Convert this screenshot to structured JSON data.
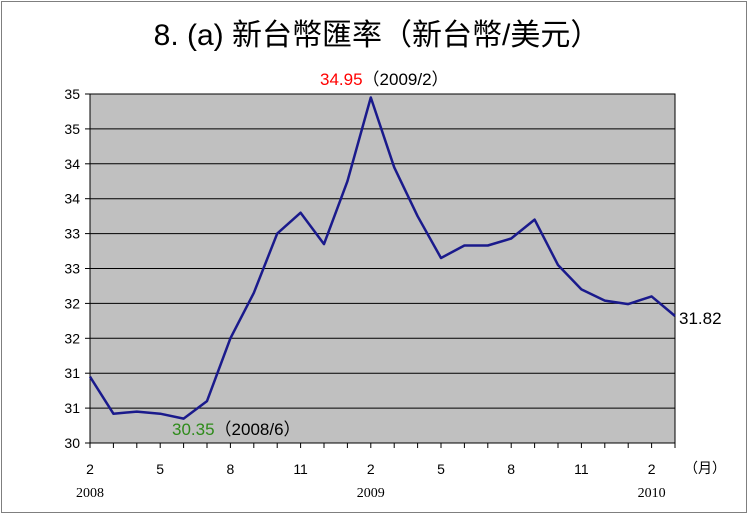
{
  "chart_data": {
    "type": "line",
    "title": "8. (a)  新台幣匯率（新台幣/美元）",
    "xlabel": "",
    "ylabel": "",
    "x_unit": "（月）",
    "x_month_ticks": [
      "2",
      "5",
      "8",
      "11",
      "2",
      "5",
      "8",
      "11",
      "2"
    ],
    "x_year_labels": [
      "2008",
      "2009",
      "2010"
    ],
    "y_tick_labels": [
      "30",
      "31",
      "31",
      "32",
      "32",
      "33",
      "33",
      "34",
      "34",
      "35",
      "35"
    ],
    "ylim": [
      30,
      35
    ],
    "grid": true,
    "background_color": "#c0c0c0",
    "line_color": "#1a1a8c",
    "series": [
      {
        "x": [
          "2008/2",
          "2008/3",
          "2008/4",
          "2008/5",
          "2008/6",
          "2008/7",
          "2008/8",
          "2008/9",
          "2008/10",
          "2008/11",
          "2008/12",
          "2009/1",
          "2009/2",
          "2009/3",
          "2009/4",
          "2009/5",
          "2009/6",
          "2009/7",
          "2009/8",
          "2009/9",
          "2009/10",
          "2009/11",
          "2009/12",
          "2010/1",
          "2010/2",
          "2010/3"
        ],
        "values": [
          30.95,
          30.42,
          30.45,
          30.42,
          30.35,
          30.6,
          31.5,
          32.15,
          33.0,
          33.3,
          32.85,
          33.75,
          34.95,
          33.95,
          33.25,
          32.65,
          32.83,
          32.83,
          32.93,
          33.2,
          32.55,
          32.2,
          32.04,
          31.99,
          32.1,
          31.82
        ]
      }
    ],
    "annotations": [
      {
        "value": "34.95",
        "value_color": "#ff0000",
        "date": "（2009/2）"
      },
      {
        "value": "30.35",
        "value_color": "#2e8b1a",
        "date": "（2008/6）"
      },
      {
        "value": "31.82",
        "value_color": "#000000",
        "date": ""
      }
    ]
  }
}
